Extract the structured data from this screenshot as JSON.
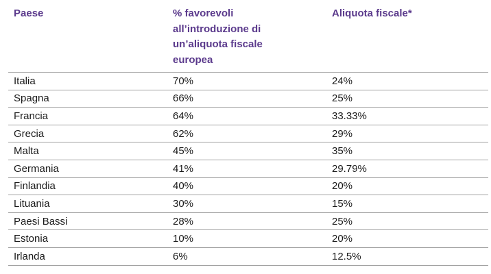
{
  "table": {
    "headers": {
      "country": "Paese",
      "favorable": "% favorevoli all’introduzione di un’aliquota fiscale europea",
      "tax_rate": "Aliquota fiscale*"
    },
    "rows": [
      {
        "country": "Italia",
        "favorable": "70%",
        "tax_rate": "24%"
      },
      {
        "country": "Spagna",
        "favorable": "66%",
        "tax_rate": "25%"
      },
      {
        "country": "Francia",
        "favorable": "64%",
        "tax_rate": "33.33%"
      },
      {
        "country": "Grecia",
        "favorable": "62%",
        "tax_rate": "29%"
      },
      {
        "country": "Malta",
        "favorable": "45%",
        "tax_rate": "35%"
      },
      {
        "country": "Germania",
        "favorable": "41%",
        "tax_rate": "29.79%"
      },
      {
        "country": "Finlandia",
        "favorable": "40%",
        "tax_rate": "20%"
      },
      {
        "country": "Lituania",
        "favorable": "30%",
        "tax_rate": "15%"
      },
      {
        "country": "Paesi Bassi",
        "favorable": "28%",
        "tax_rate": "25%"
      },
      {
        "country": "Estonia",
        "favorable": "10%",
        "tax_rate": "20%"
      },
      {
        "country": "Irlanda",
        "favorable": "6%",
        "tax_rate": "12.5%"
      }
    ]
  },
  "colors": {
    "header_text": "#5b3a8c",
    "body_text": "#1a1a1a",
    "rule": "#a0a0a0"
  }
}
